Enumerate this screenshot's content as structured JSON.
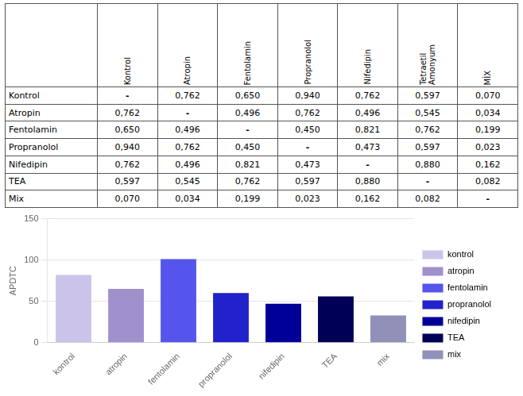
{
  "chart_data": [
    {
      "type": "table",
      "columns": [
        "Kontrol",
        "Atropin",
        "Fentolamin",
        "Propranolol",
        "Nifedipin",
        "Tetraetil\nAmonyum",
        "MİX"
      ],
      "rows": [
        {
          "name": "Kontrol",
          "cells": [
            "-",
            "0,762",
            "0,650",
            "0,940",
            "0,762",
            "0,597",
            "0,070"
          ]
        },
        {
          "name": "Atropin",
          "cells": [
            "0,762",
            "-",
            "0,496",
            "0,762",
            "0,496",
            "0,545",
            "0,034"
          ]
        },
        {
          "name": "Fentolamin",
          "cells": [
            "0,650",
            "0,496",
            "-",
            "0,450",
            "0,821",
            "0,762",
            "0,199"
          ]
        },
        {
          "name": "Propranolol",
          "cells": [
            "0,940",
            "0,762",
            "0,450",
            "-",
            "0,473",
            "0,597",
            "0,023"
          ]
        },
        {
          "name": "Nifedipin",
          "cells": [
            "0,762",
            "0,496",
            "0,821",
            "0,473",
            "-",
            "0,880",
            "0,162"
          ]
        },
        {
          "name": "TEA",
          "cells": [
            "0,597",
            "0,545",
            "0,762",
            "0,597",
            "0,880",
            "-",
            "0,082"
          ]
        },
        {
          "name": "Mix",
          "cells": [
            "0,070",
            "0,034",
            "0,199",
            "0,023",
            "0,162",
            "0,082",
            "-"
          ]
        }
      ]
    },
    {
      "type": "bar",
      "categories": [
        "kontrol",
        "atropin",
        "fentolamin",
        "propranolol",
        "nifedipin",
        "TEA",
        "mix"
      ],
      "values": [
        82,
        65,
        101,
        60,
        47,
        56,
        33
      ],
      "colors": [
        "#ccc4e8",
        "#a090cc",
        "#5555ee",
        "#2222cc",
        "#000099",
        "#000055",
        "#9090b8"
      ],
      "ylabel": "APDTC",
      "ylim": [
        0,
        150
      ],
      "yticks": [
        0,
        50,
        100,
        150
      ],
      "grid": true,
      "legend": "right"
    }
  ]
}
